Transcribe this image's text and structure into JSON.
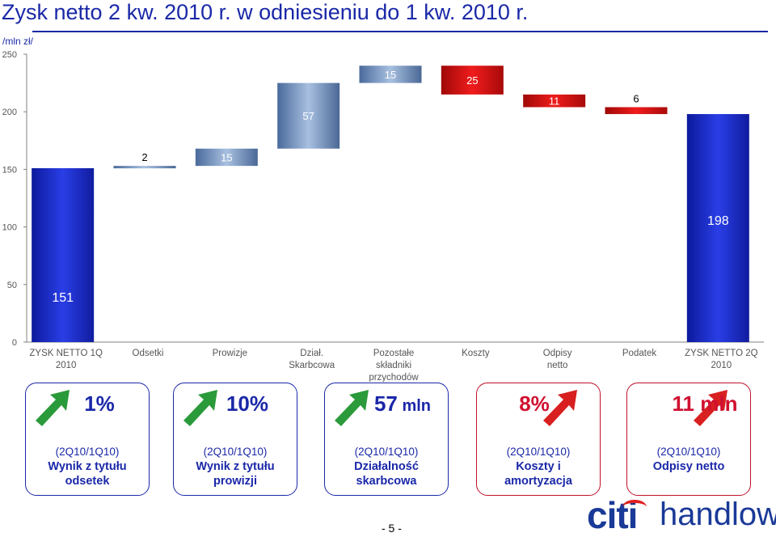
{
  "title": "Zysk netto 2 kw. 2010 r. w odniesieniu do 1 kw. 2010 r.",
  "chart_data": {
    "type": "bar",
    "subtype": "waterfall",
    "ylabel": "/mln zł/",
    "ylim": [
      0,
      250
    ],
    "yticks": [
      0,
      50,
      100,
      150,
      200,
      250
    ],
    "grid": false,
    "categories": [
      [
        "ZYSK NETTO 1Q",
        "2010"
      ],
      [
        "Odsetki"
      ],
      [
        "Prowizje"
      ],
      [
        "Dział.",
        "Skarbcowa"
      ],
      [
        "Pozostałe",
        "składniki",
        "przychodów"
      ],
      [
        "Koszty"
      ],
      [
        "Odpisy",
        "netto"
      ],
      [
        "Podatek"
      ],
      [
        "ZYSK NETTO 2Q",
        "2010"
      ]
    ],
    "bars": [
      {
        "label": "151",
        "value": 151,
        "kind": "total"
      },
      {
        "label": "2",
        "value": 2,
        "kind": "increase"
      },
      {
        "label": "15",
        "value": 15,
        "kind": "increase"
      },
      {
        "label": "57",
        "value": 57,
        "kind": "increase"
      },
      {
        "label": "15",
        "value": 15,
        "kind": "increase"
      },
      {
        "label": "25",
        "value": -25,
        "kind": "decrease"
      },
      {
        "label": "11",
        "value": -11,
        "kind": "decrease"
      },
      {
        "label": "6",
        "value": -6,
        "kind": "decrease"
      },
      {
        "label": "198",
        "value": 198,
        "kind": "total"
      }
    ]
  },
  "cards": [
    {
      "value": "1%",
      "unit": "",
      "direction": "up",
      "period": "(2Q10/1Q10)",
      "lines": [
        "Wynik z tytułu",
        "odsetek"
      ]
    },
    {
      "value": "10%",
      "unit": "",
      "direction": "up",
      "period": "(2Q10/1Q10)",
      "lines": [
        "Wynik z tytułu",
        "prowizji"
      ]
    },
    {
      "value": "57",
      "unit": " mln",
      "direction": "up",
      "period": "(2Q10/1Q10)",
      "lines": [
        "Działalność",
        "skarbcowa"
      ]
    },
    {
      "value": "8%",
      "unit": "",
      "direction": "down",
      "period": "(2Q10/1Q10)",
      "lines": [
        "Koszty i",
        "amortyzacja"
      ]
    },
    {
      "value": "11 mln",
      "unit": "",
      "direction": "down",
      "period": "(2Q10/1Q10)",
      "lines": [
        "Odpisy netto"
      ]
    }
  ],
  "page_number": "- 5 -",
  "logo": {
    "brand": "citi",
    "name": "handlowy"
  },
  "colors": {
    "title": "#1a28a8",
    "total_bar": "#1a28d0",
    "increase_bar": "#6a8ab8",
    "decrease_bar": "#d01010",
    "arrow_up": "#2a9a3a",
    "arrow_down": "#d82020"
  }
}
